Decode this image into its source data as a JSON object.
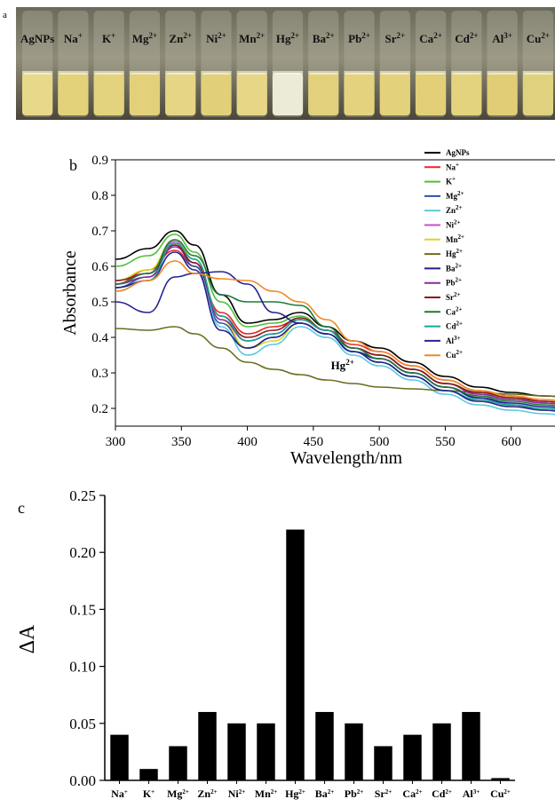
{
  "photo": {
    "panel_label": "a",
    "vials": [
      {
        "label": "AgNPs",
        "sup": "",
        "color": "#e6d98a"
      },
      {
        "label": "Na",
        "sup": "+",
        "color": "#e3d27a"
      },
      {
        "label": "K",
        "sup": "+",
        "color": "#e4d37e"
      },
      {
        "label": "Mg",
        "sup": "2+",
        "color": "#e2d07a"
      },
      {
        "label": "Zn",
        "sup": "2+",
        "color": "#e5d584"
      },
      {
        "label": "Ni",
        "sup": "2+",
        "color": "#e1cf7a"
      },
      {
        "label": "Mn",
        "sup": "2+",
        "color": "#e6d686"
      },
      {
        "label": "Hg",
        "sup": "2+",
        "color": "#ecebd8"
      },
      {
        "label": "Ba",
        "sup": "2+",
        "color": "#e2d07c"
      },
      {
        "label": "Pb",
        "sup": "2+",
        "color": "#e4d27e"
      },
      {
        "label": "Sr",
        "sup": "2+",
        "color": "#e3d17c"
      },
      {
        "label": "Ca",
        "sup": "2+",
        "color": "#e2cf78"
      },
      {
        "label": "Cd",
        "sup": "2+",
        "color": "#e4d37e"
      },
      {
        "label": "Al",
        "sup": "3+",
        "color": "#e0cd76"
      },
      {
        "label": "Cu",
        "sup": "2+",
        "color": "#ded27e"
      }
    ]
  },
  "chart_data": [
    {
      "type": "line",
      "panel_label": "b",
      "xlabel": "Wavelength/nm",
      "ylabel": "Absorbance",
      "xlim": [
        300,
        650
      ],
      "ylim": [
        0.15,
        0.9
      ],
      "xticks": [
        300,
        350,
        400,
        450,
        500,
        550,
        600,
        650
      ],
      "yticks": [
        0.2,
        0.3,
        0.4,
        0.5,
        0.6,
        0.7,
        0.8,
        0.9
      ],
      "annotation": {
        "text": "Hg",
        "sup": "2+",
        "x": 470,
        "y": 0.31
      },
      "legend_position": "right",
      "x": [
        300,
        325,
        345,
        360,
        380,
        400,
        420,
        440,
        460,
        480,
        500,
        525,
        550,
        575,
        600,
        625,
        650
      ],
      "series": [
        {
          "name": "AgNPs",
          "sup": "",
          "color": "#000000",
          "values": [
            0.62,
            0.65,
            0.7,
            0.66,
            0.52,
            0.44,
            0.45,
            0.47,
            0.43,
            0.39,
            0.37,
            0.33,
            0.29,
            0.26,
            0.245,
            0.235,
            0.23
          ]
        },
        {
          "name": "Na",
          "sup": "+",
          "color": "#e8262a",
          "values": [
            0.55,
            0.59,
            0.645,
            0.6,
            0.47,
            0.41,
            0.43,
            0.45,
            0.42,
            0.38,
            0.36,
            0.32,
            0.28,
            0.25,
            0.235,
            0.22,
            0.21
          ]
        },
        {
          "name": "K",
          "sup": "+",
          "color": "#4fbf3a",
          "values": [
            0.6,
            0.63,
            0.69,
            0.64,
            0.5,
            0.43,
            0.44,
            0.46,
            0.42,
            0.37,
            0.35,
            0.31,
            0.27,
            0.245,
            0.23,
            0.215,
            0.205
          ]
        },
        {
          "name": "Mg",
          "sup": "2+",
          "color": "#2952a8",
          "values": [
            0.54,
            0.57,
            0.66,
            0.6,
            0.44,
            0.37,
            0.4,
            0.44,
            0.41,
            0.36,
            0.34,
            0.3,
            0.26,
            0.23,
            0.21,
            0.195,
            0.185
          ]
        },
        {
          "name": "Zn",
          "sup": "2+",
          "color": "#5cc8e0",
          "values": [
            0.55,
            0.58,
            0.665,
            0.61,
            0.43,
            0.35,
            0.38,
            0.43,
            0.4,
            0.35,
            0.32,
            0.28,
            0.24,
            0.21,
            0.195,
            0.185,
            0.175
          ]
        },
        {
          "name": "Ni",
          "sup": "2+",
          "color": "#c84fcb",
          "values": [
            0.55,
            0.58,
            0.67,
            0.62,
            0.46,
            0.39,
            0.41,
            0.45,
            0.42,
            0.37,
            0.35,
            0.31,
            0.27,
            0.24,
            0.225,
            0.215,
            0.205
          ]
        },
        {
          "name": "Mn",
          "sup": "2+",
          "color": "#d8d820",
          "values": [
            0.56,
            0.59,
            0.675,
            0.62,
            0.45,
            0.37,
            0.39,
            0.44,
            0.41,
            0.36,
            0.33,
            0.29,
            0.25,
            0.22,
            0.205,
            0.195,
            0.185
          ]
        },
        {
          "name": "Hg",
          "sup": "2+",
          "color": "#6b6b1f",
          "values": [
            0.425,
            0.42,
            0.43,
            0.41,
            0.37,
            0.33,
            0.31,
            0.295,
            0.28,
            0.27,
            0.26,
            0.255,
            0.25,
            0.245,
            0.24,
            0.235,
            0.23
          ]
        },
        {
          "name": "Ba",
          "sup": "2+",
          "color": "#22208c",
          "values": [
            0.54,
            0.56,
            0.64,
            0.59,
            0.42,
            0.37,
            0.4,
            0.44,
            0.41,
            0.36,
            0.34,
            0.3,
            0.26,
            0.23,
            0.215,
            0.205,
            0.195
          ]
        },
        {
          "name": "Pb",
          "sup": "2+",
          "color": "#8a2a9a",
          "values": [
            0.55,
            0.57,
            0.655,
            0.61,
            0.45,
            0.39,
            0.41,
            0.45,
            0.42,
            0.37,
            0.35,
            0.31,
            0.27,
            0.24,
            0.225,
            0.215,
            0.205
          ]
        },
        {
          "name": "Sr",
          "sup": "2+",
          "color": "#8b1a1a",
          "values": [
            0.56,
            0.58,
            0.66,
            0.61,
            0.46,
            0.4,
            0.42,
            0.455,
            0.42,
            0.37,
            0.35,
            0.31,
            0.27,
            0.245,
            0.23,
            0.22,
            0.21
          ]
        },
        {
          "name": "Ca",
          "sup": "2+",
          "color": "#1f7a3a",
          "values": [
            0.55,
            0.58,
            0.675,
            0.63,
            0.52,
            0.5,
            0.5,
            0.49,
            0.43,
            0.37,
            0.34,
            0.3,
            0.26,
            0.235,
            0.22,
            0.21,
            0.2
          ]
        },
        {
          "name": "Cd",
          "sup": "2+",
          "color": "#1aa39a",
          "values": [
            0.53,
            0.56,
            0.665,
            0.62,
            0.46,
            0.39,
            0.41,
            0.45,
            0.42,
            0.36,
            0.33,
            0.29,
            0.25,
            0.225,
            0.21,
            0.2,
            0.19
          ]
        },
        {
          "name": "Al",
          "sup": "3+",
          "color": "#25238f",
          "values": [
            0.5,
            0.47,
            0.57,
            0.58,
            0.585,
            0.55,
            0.47,
            0.44,
            0.41,
            0.36,
            0.33,
            0.29,
            0.25,
            0.22,
            0.205,
            0.195,
            0.185
          ]
        },
        {
          "name": "Cu",
          "sup": "2+",
          "color": "#f08a24",
          "values": [
            0.53,
            0.56,
            0.615,
            0.58,
            0.565,
            0.56,
            0.53,
            0.5,
            0.45,
            0.39,
            0.36,
            0.32,
            0.28,
            0.25,
            0.235,
            0.225,
            0.215
          ]
        }
      ]
    },
    {
      "type": "bar",
      "panel_label": "c",
      "ylabel": "ΔA",
      "ylim": [
        0,
        0.25
      ],
      "yticks": [
        "0.00",
        "0.05",
        "0.10",
        "0.15",
        "0.20",
        "0.25"
      ],
      "categories": [
        {
          "label": "Na",
          "sup": "+"
        },
        {
          "label": "K",
          "sup": "+"
        },
        {
          "label": "Mg",
          "sup": "2+"
        },
        {
          "label": "Zn",
          "sup": "2+"
        },
        {
          "label": "Ni",
          "sup": "2+"
        },
        {
          "label": "Mn",
          "sup": "2+"
        },
        {
          "label": "Hg",
          "sup": "2+"
        },
        {
          "label": "Ba",
          "sup": "2+"
        },
        {
          "label": "Pb",
          "sup": "2+"
        },
        {
          "label": "Sr",
          "sup": "2+"
        },
        {
          "label": "Ca",
          "sup": "2+"
        },
        {
          "label": "Cd",
          "sup": "2+"
        },
        {
          "label": "Al",
          "sup": "3+"
        },
        {
          "label": "Cu",
          "sup": "2+"
        }
      ],
      "values": [
        0.04,
        0.01,
        0.03,
        0.06,
        0.05,
        0.05,
        0.22,
        0.06,
        0.05,
        0.03,
        0.04,
        0.05,
        0.06,
        0.002
      ],
      "bar_color": "#000000"
    }
  ]
}
